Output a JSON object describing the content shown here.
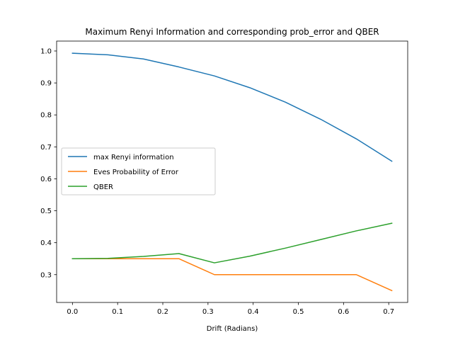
{
  "chart_data": {
    "type": "line",
    "title": "Maximum Renyi Information and corresponding prob_error and QBER",
    "xlabel": "Drift (Radians)",
    "ylabel": "",
    "xlim": [
      -0.035,
      0.742
    ],
    "ylim": [
      0.213,
      1.031
    ],
    "x_ticks": [
      "0.0",
      "0.1",
      "0.2",
      "0.3",
      "0.4",
      "0.5",
      "0.6",
      "0.7"
    ],
    "x_tick_values": [
      0.0,
      0.1,
      0.2,
      0.3,
      0.4,
      0.5,
      0.6,
      0.7
    ],
    "y_ticks": [
      "0.3",
      "0.4",
      "0.5",
      "0.6",
      "0.7",
      "0.8",
      "0.9",
      "1.0"
    ],
    "y_tick_values": [
      0.3,
      0.4,
      0.5,
      0.6,
      0.7,
      0.8,
      0.9,
      1.0
    ],
    "x": [
      0.0,
      0.0785,
      0.1571,
      0.2356,
      0.3142,
      0.3927,
      0.4712,
      0.5498,
      0.6283,
      0.7069
    ],
    "series": [
      {
        "name": "max Renyi information",
        "color": "#1f77b4",
        "values": [
          0.993,
          0.988,
          0.975,
          0.95,
          0.922,
          0.885,
          0.84,
          0.786,
          0.725,
          0.655
        ]
      },
      {
        "name": "Eves Probability of Error",
        "color": "#ff7f0e",
        "values": [
          0.35,
          0.35,
          0.35,
          0.35,
          0.3,
          0.3,
          0.3,
          0.3,
          0.3,
          0.25
        ]
      },
      {
        "name": "QBER",
        "color": "#2ca02c",
        "values": [
          0.35,
          0.351,
          0.357,
          0.366,
          0.337,
          0.358,
          0.383,
          0.41,
          0.437,
          0.461
        ]
      }
    ],
    "legend_position": "center-left",
    "grid": false
  }
}
